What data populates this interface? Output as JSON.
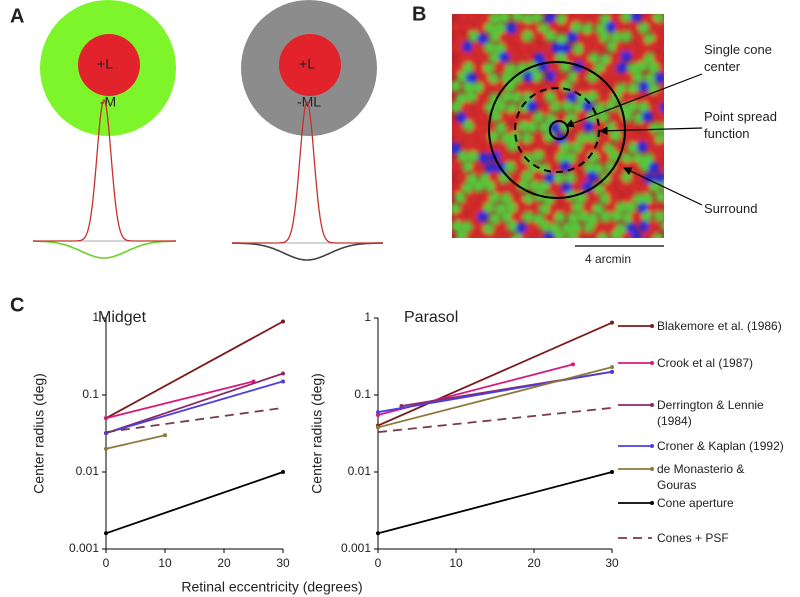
{
  "panel_labels": [
    "A",
    "B",
    "C"
  ],
  "panel_a": {
    "receptive_fields": [
      {
        "center": "+L",
        "surround": "-M"
      },
      {
        "center": "+L",
        "surround": "-ML"
      }
    ]
  },
  "panel_b": {
    "annotations": [
      "Single cone center",
      "Point spread function",
      "Surround"
    ],
    "scale_bar": "4 arcmin"
  },
  "chart_data": [
    {
      "type": "line",
      "title": "Midget",
      "ylabel": "Center radius (deg)",
      "xlabel": "Retinal eccentricity (degrees)",
      "xlim": [
        0,
        30
      ],
      "xticks": [
        0,
        10,
        20,
        30
      ],
      "ylim": [
        0.001,
        1
      ],
      "yticks": [
        0.001,
        0.01,
        0.1,
        1
      ],
      "log_y": true,
      "series": [
        {
          "color": "#7b1a1a",
          "x": [
            0,
            30
          ],
          "values": [
            0.05,
            0.9
          ]
        },
        {
          "color": "#d6197a",
          "x": [
            0,
            25
          ],
          "values": [
            0.05,
            0.15
          ]
        },
        {
          "color": "#8b2a6b",
          "x": [
            0,
            30
          ],
          "values": [
            0.032,
            0.19
          ]
        },
        {
          "color": "#4b3ee0",
          "x": [
            0,
            30
          ],
          "values": [
            0.032,
            0.15
          ]
        },
        {
          "color": "#8a7a3a",
          "x": [
            0,
            10
          ],
          "values": [
            0.02,
            0.03
          ]
        },
        {
          "color": "#000000",
          "x": [
            0,
            30
          ],
          "values": [
            0.0016,
            0.01
          ]
        },
        {
          "color": "#7a3a4a",
          "x": [
            0,
            30
          ],
          "values": [
            0.033,
            0.068
          ],
          "dash": true
        }
      ]
    },
    {
      "type": "line",
      "title": "Parasol",
      "ylabel": "Center radius (deg)",
      "xlim": [
        0,
        30
      ],
      "xticks": [
        0,
        10,
        20,
        30
      ],
      "ylim": [
        0.001,
        1
      ],
      "yticks": [
        0.001,
        0.01,
        0.1,
        1
      ],
      "log_y": true,
      "legend": "right",
      "series": [
        {
          "name": "Blakemore et al. (1986)",
          "color": "#7b1a1a",
          "x": [
            0,
            30
          ],
          "values": [
            0.04,
            0.87
          ]
        },
        {
          "name": "Crook et al (1987)",
          "color": "#d6197a",
          "x": [
            0,
            25
          ],
          "values": [
            0.055,
            0.25
          ]
        },
        {
          "name": "Derrington & Lennie (1984)",
          "color": "#8b2a6b",
          "x": [
            3,
            30
          ],
          "values": [
            0.072,
            0.2
          ]
        },
        {
          "name": "Croner & Kaplan (1992)",
          "color": "#4b3ee0",
          "x": [
            0,
            30
          ],
          "values": [
            0.06,
            0.2
          ]
        },
        {
          "name": "de Monasterio & Gouras",
          "color": "#8a7a3a",
          "x": [
            0,
            30
          ],
          "values": [
            0.038,
            0.23
          ]
        },
        {
          "name": "Cone aperture",
          "color": "#000000",
          "x": [
            0,
            30
          ],
          "values": [
            0.0016,
            0.01
          ]
        },
        {
          "name": "Cones + PSF",
          "color": "#7a3a4a",
          "x": [
            0,
            30
          ],
          "values": [
            0.033,
            0.068
          ],
          "dash": true
        }
      ]
    }
  ]
}
